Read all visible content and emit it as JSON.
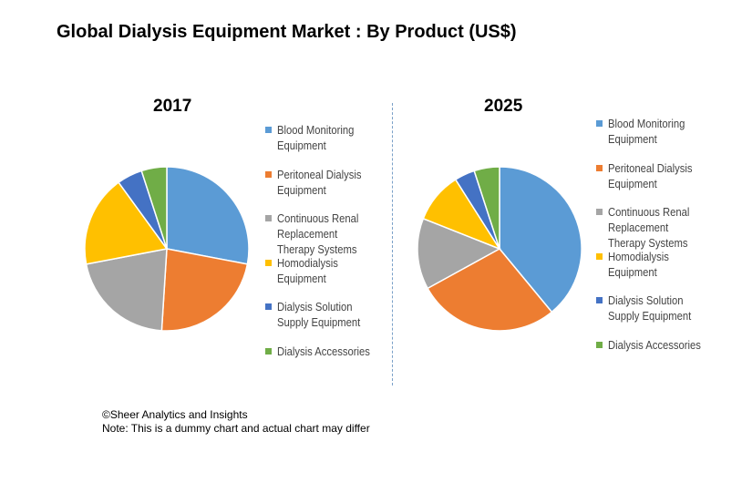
{
  "header": {
    "title": "Global Dialysis Equipment Market :  By Product (US$)"
  },
  "chart_data": [
    {
      "type": "pie",
      "title": "2017",
      "slices": [
        {
          "label": "Blood Monitoring Equipment",
          "value": 28,
          "color": "#5b9bd5"
        },
        {
          "label": "Peritoneal Dialysis Equipment",
          "value": 23,
          "color": "#ed7d31"
        },
        {
          "label": "Continuous  Renal Replacement Therapy Systems",
          "value": 21,
          "color": "#a5a5a5"
        },
        {
          "label": "Homodialysis Equipment",
          "value": 18,
          "color": "#ffc000"
        },
        {
          "label": "Dialysis Solution Supply Equipment",
          "value": 5,
          "color": "#4472c4"
        },
        {
          "label": "Dialysis Accessories",
          "value": 5,
          "color": "#70ad47"
        }
      ],
      "start_angle": "12 o'clock, clockwise",
      "legend_position": "right"
    },
    {
      "type": "pie",
      "title": "2025",
      "slices": [
        {
          "label": "Blood Monitoring Equipment",
          "value": 39,
          "color": "#5b9bd5"
        },
        {
          "label": "Peritoneal Dialysis Equipment",
          "value": 28,
          "color": "#ed7d31"
        },
        {
          "label": "Continuous  Renal Replacement Therapy Systems",
          "value": 14,
          "color": "#a5a5a5"
        },
        {
          "label": "Homodialysis Equipment",
          "value": 10,
          "color": "#ffc000"
        },
        {
          "label": "Dialysis Solution Supply Equipment",
          "value": 4,
          "color": "#4472c4"
        },
        {
          "label": "Dialysis Accessories",
          "value": 5,
          "color": "#70ad47"
        }
      ],
      "start_angle": "12 o'clock, clockwise",
      "legend_position": "right"
    }
  ],
  "footnote": {
    "copyright": "©Sheer Analytics and Insights",
    "note": "Note: This is a dummy chart and actual chart may differ"
  }
}
